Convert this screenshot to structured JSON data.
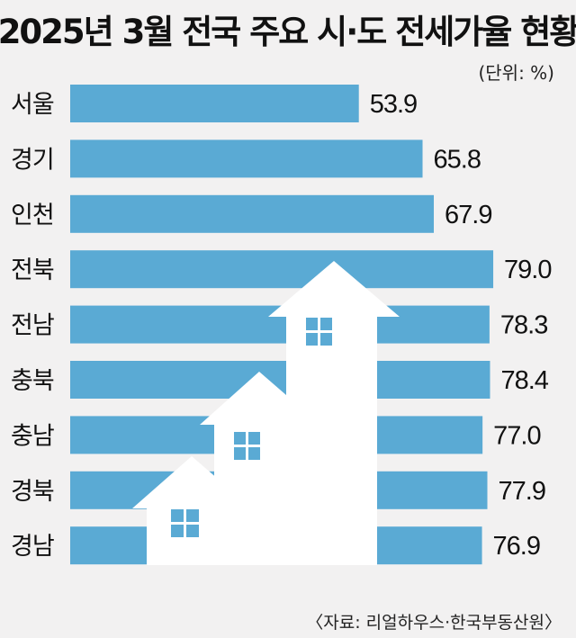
{
  "chart_data": {
    "type": "bar",
    "orientation": "horizontal",
    "title": "2025년 3월 전국 주요 시·도 전세가율 현황",
    "unit": "(단위: %)",
    "source": "〈자료: 리얼하우스·한국부동산원〉",
    "categories": [
      "서울",
      "경기",
      "인천",
      "전북",
      "전남",
      "충북",
      "충남",
      "경북",
      "경남"
    ],
    "values": [
      53.9,
      65.8,
      67.9,
      79.0,
      78.3,
      78.4,
      77.0,
      77.9,
      76.9
    ],
    "value_labels": [
      "53.9",
      "65.8",
      "67.9",
      "79.0",
      "78.3",
      "78.4",
      "77.0",
      "77.9",
      "76.9"
    ],
    "xlabel": "",
    "ylabel": "",
    "grid": false,
    "legend": "none"
  },
  "colors": {
    "bar": "#5aaad4",
    "background": "#f2f1f1",
    "illustration": "#ffffff"
  },
  "illustration": "three-houses-icon"
}
